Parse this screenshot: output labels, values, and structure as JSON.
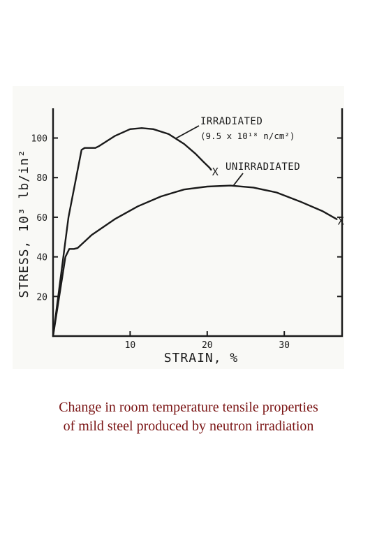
{
  "chart_data": {
    "type": "line",
    "xlabel": "STRAIN, %",
    "ylabel": "STRESS, 10³ lb/in²",
    "xlim": [
      0,
      37.5
    ],
    "ylim": [
      0,
      115
    ],
    "x_ticks": [
      "10",
      "20",
      "30"
    ],
    "y_ticks": [
      "20",
      "40",
      "60",
      "80",
      "100"
    ],
    "grid": false,
    "series": [
      {
        "name": "IRRADIATED",
        "name_note": "(9.5 x 10¹⁸ n/cm²)",
        "end_marker": "X",
        "x": [
          0,
          2,
          3.7,
          4.1,
          5.5,
          6,
          8,
          10,
          11.5,
          13,
          15,
          17,
          18.5,
          19.5,
          20.3,
          20.5
        ],
        "y": [
          0,
          60,
          94,
          95,
          95,
          96,
          101,
          104.5,
          105,
          104.5,
          102,
          97,
          92,
          88,
          85,
          84
        ]
      },
      {
        "name": "UNIRRADIATED",
        "end_marker": "X",
        "x": [
          0,
          1.6,
          2.1,
          2.7,
          3.2,
          5,
          8,
          11,
          14,
          17,
          20,
          23,
          26,
          29,
          32,
          35,
          36.8
        ],
        "y": [
          0,
          40,
          44,
          44,
          44.5,
          51,
          59,
          65.5,
          70.5,
          74,
          75.5,
          76,
          75,
          72.5,
          68,
          63,
          59
        ]
      }
    ]
  },
  "caption": {
    "line1": "Change in room temperature tensile properties",
    "line2": "of mild steel produced by neutron irradiation"
  },
  "colors": {
    "caption": "#7a1414",
    "ink": "#1a1a1a",
    "panel": "#f9f9f6"
  }
}
